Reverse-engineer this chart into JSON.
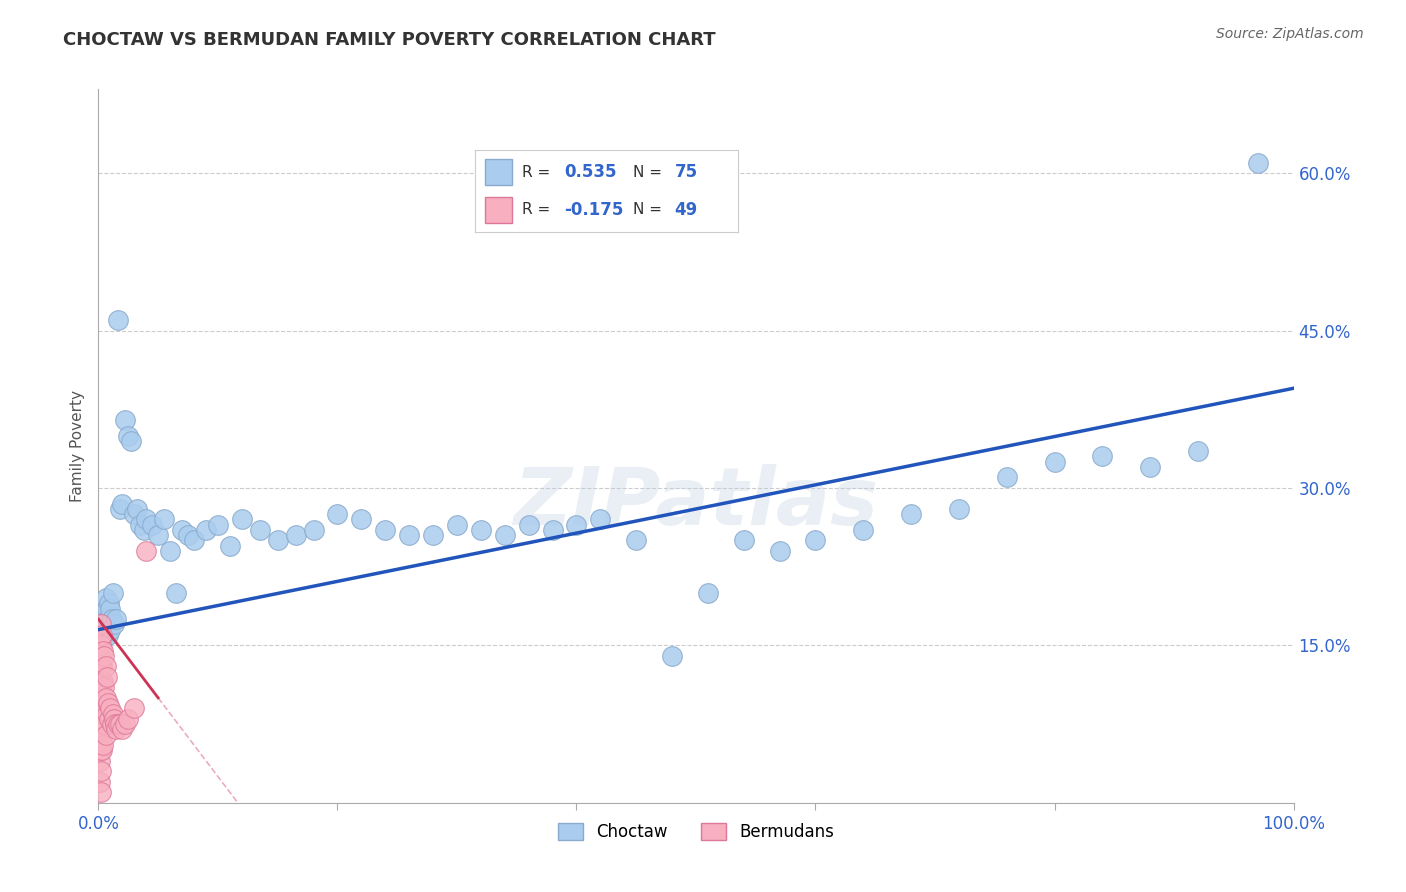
{
  "title": "CHOCTAW VS BERMUDAN FAMILY POVERTY CORRELATION CHART",
  "source": "Source: ZipAtlas.com",
  "ylabel": "Family Poverty",
  "xlim": [
    0.0,
    1.0
  ],
  "ylim": [
    0.0,
    0.68
  ],
  "xticks": [
    0.0,
    0.2,
    0.4,
    0.6,
    0.8,
    1.0
  ],
  "xticklabels": [
    "0.0%",
    "",
    "",
    "",
    "",
    "100.0%"
  ],
  "ytick_positions": [
    0.0,
    0.15,
    0.3,
    0.45,
    0.6
  ],
  "ytick_labels": [
    "",
    "15.0%",
    "30.0%",
    "45.0%",
    "60.0%"
  ],
  "grid_color": "#cccccc",
  "background_color": "#ffffff",
  "choctaw_color": "#aaccee",
  "choctaw_edge": "#88aacc",
  "bermudan_color": "#f8b0c0",
  "bermudan_edge": "#dd7799",
  "line_color_choctaw": "#2255bb",
  "line_color_bermudan": "#cc3355",
  "watermark": "ZIPatlas",
  "R_choctaw": 0.535,
  "N_choctaw": 75,
  "R_bermudan": -0.175,
  "N_bermudan": 49,
  "choctaw_x": [
    0.002,
    0.003,
    0.003,
    0.004,
    0.004,
    0.005,
    0.005,
    0.006,
    0.006,
    0.007,
    0.007,
    0.008,
    0.008,
    0.009,
    0.009,
    0.01,
    0.01,
    0.011,
    0.012,
    0.013,
    0.015,
    0.016,
    0.018,
    0.02,
    0.022,
    0.025,
    0.027,
    0.03,
    0.032,
    0.035,
    0.038,
    0.04,
    0.045,
    0.05,
    0.055,
    0.06,
    0.065,
    0.07,
    0.075,
    0.08,
    0.09,
    0.1,
    0.11,
    0.12,
    0.135,
    0.15,
    0.165,
    0.18,
    0.2,
    0.22,
    0.24,
    0.26,
    0.28,
    0.3,
    0.32,
    0.34,
    0.36,
    0.38,
    0.4,
    0.42,
    0.45,
    0.48,
    0.51,
    0.54,
    0.57,
    0.6,
    0.64,
    0.68,
    0.72,
    0.76,
    0.8,
    0.84,
    0.88,
    0.92,
    0.97
  ],
  "choctaw_y": [
    0.175,
    0.17,
    0.165,
    0.18,
    0.175,
    0.16,
    0.185,
    0.17,
    0.195,
    0.165,
    0.185,
    0.16,
    0.175,
    0.17,
    0.19,
    0.165,
    0.185,
    0.175,
    0.2,
    0.17,
    0.175,
    0.46,
    0.28,
    0.285,
    0.365,
    0.35,
    0.345,
    0.275,
    0.28,
    0.265,
    0.26,
    0.27,
    0.265,
    0.255,
    0.27,
    0.24,
    0.2,
    0.26,
    0.255,
    0.25,
    0.26,
    0.265,
    0.245,
    0.27,
    0.26,
    0.25,
    0.255,
    0.26,
    0.275,
    0.27,
    0.26,
    0.255,
    0.255,
    0.265,
    0.26,
    0.255,
    0.265,
    0.26,
    0.265,
    0.27,
    0.25,
    0.14,
    0.2,
    0.25,
    0.24,
    0.25,
    0.26,
    0.275,
    0.28,
    0.31,
    0.325,
    0.33,
    0.32,
    0.335,
    0.61
  ],
  "bermudan_x": [
    0.001,
    0.001,
    0.001,
    0.001,
    0.001,
    0.001,
    0.001,
    0.001,
    0.002,
    0.002,
    0.002,
    0.002,
    0.002,
    0.002,
    0.002,
    0.002,
    0.002,
    0.003,
    0.003,
    0.003,
    0.003,
    0.003,
    0.004,
    0.004,
    0.004,
    0.004,
    0.005,
    0.005,
    0.005,
    0.006,
    0.006,
    0.006,
    0.007,
    0.007,
    0.008,
    0.009,
    0.01,
    0.011,
    0.012,
    0.013,
    0.014,
    0.015,
    0.016,
    0.018,
    0.02,
    0.022,
    0.025,
    0.03,
    0.04
  ],
  "bermudan_y": [
    0.16,
    0.14,
    0.12,
    0.1,
    0.08,
    0.06,
    0.04,
    0.02,
    0.17,
    0.15,
    0.13,
    0.11,
    0.09,
    0.07,
    0.05,
    0.03,
    0.01,
    0.16,
    0.13,
    0.105,
    0.08,
    0.05,
    0.145,
    0.115,
    0.085,
    0.055,
    0.14,
    0.11,
    0.075,
    0.13,
    0.1,
    0.065,
    0.12,
    0.085,
    0.095,
    0.08,
    0.09,
    0.075,
    0.085,
    0.08,
    0.075,
    0.07,
    0.075,
    0.075,
    0.07,
    0.075,
    0.08,
    0.09,
    0.24
  ]
}
